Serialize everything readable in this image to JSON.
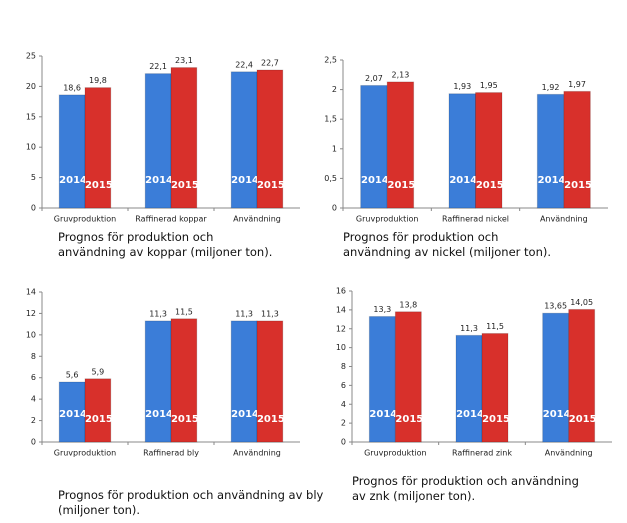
{
  "chart_data": [
    {
      "type": "bar",
      "caption": "Prognos för produktion och användning av koppar (miljoner ton).",
      "categories": [
        "Gruvproduktion",
        "Raffinerad koppar",
        "Användning"
      ],
      "series": [
        {
          "name": "2014",
          "color": "#3b7dd8",
          "values": [
            18.6,
            22.1,
            22.4
          ],
          "value_labels": [
            "18,6",
            "22,1",
            "22,4"
          ]
        },
        {
          "name": "2015",
          "color": "#d8302b",
          "values": [
            19.8,
            23.1,
            22.7
          ],
          "value_labels": [
            "19,8",
            "23,1",
            "22,7"
          ]
        }
      ],
      "ylim": [
        0,
        25
      ],
      "yticks": [
        0,
        5,
        10,
        15,
        20,
        25
      ]
    },
    {
      "type": "bar",
      "caption": "Prognos för produktion och användning av nickel (miljoner ton).",
      "categories": [
        "Gruvproduktion",
        "Raffinerad nickel",
        "Användning"
      ],
      "series": [
        {
          "name": "2014",
          "color": "#3b7dd8",
          "values": [
            2.07,
            1.93,
            1.92
          ],
          "value_labels": [
            "2,07",
            "1,93",
            "1,92"
          ]
        },
        {
          "name": "2015",
          "color": "#d8302b",
          "values": [
            2.13,
            1.95,
            1.97
          ],
          "value_labels": [
            "2,13",
            "1,95",
            "1,97"
          ]
        }
      ],
      "ylim": [
        0,
        2.5
      ],
      "yticks": [
        0,
        {
          "value": 0.5,
          "label": "0,5"
        },
        1,
        {
          "value": 1.5,
          "label": "1,5"
        },
        2,
        {
          "value": 2.5,
          "label": "2,5"
        }
      ]
    },
    {
      "type": "bar",
      "caption": "Prognos för produktion och användning av bly (miljoner ton).",
      "categories": [
        "Gruvproduktion",
        "Raffinerad bly",
        "Användning"
      ],
      "series": [
        {
          "name": "2014",
          "color": "#3b7dd8",
          "values": [
            5.6,
            11.3,
            11.3
          ],
          "value_labels": [
            "5,6",
            "11,3",
            "11,3"
          ]
        },
        {
          "name": "2015",
          "color": "#d8302b",
          "values": [
            5.9,
            11.5,
            11.3
          ],
          "value_labels": [
            "5,9",
            "11,5",
            "11,3"
          ]
        }
      ],
      "ylim": [
        0,
        14
      ],
      "yticks": [
        0,
        2,
        4,
        6,
        8,
        10,
        12,
        14
      ]
    },
    {
      "type": "bar",
      "caption": "Prognos för produktion och användning av znk (miljoner ton).",
      "categories": [
        "Gruvproduktion",
        "Raffinerad zink",
        "Användning"
      ],
      "series": [
        {
          "name": "2014",
          "color": "#3b7dd8",
          "values": [
            13.3,
            11.3,
            13.65
          ],
          "value_labels": [
            "13,3",
            "11,3",
            "13,65"
          ]
        },
        {
          "name": "2015",
          "color": "#d8302b",
          "values": [
            13.8,
            11.5,
            14.05
          ],
          "value_labels": [
            "13,8",
            "11,5",
            "14,05"
          ]
        }
      ],
      "ylim": [
        0,
        16
      ],
      "yticks": [
        0,
        2,
        4,
        6,
        8,
        10,
        12,
        14,
        16
      ]
    }
  ]
}
